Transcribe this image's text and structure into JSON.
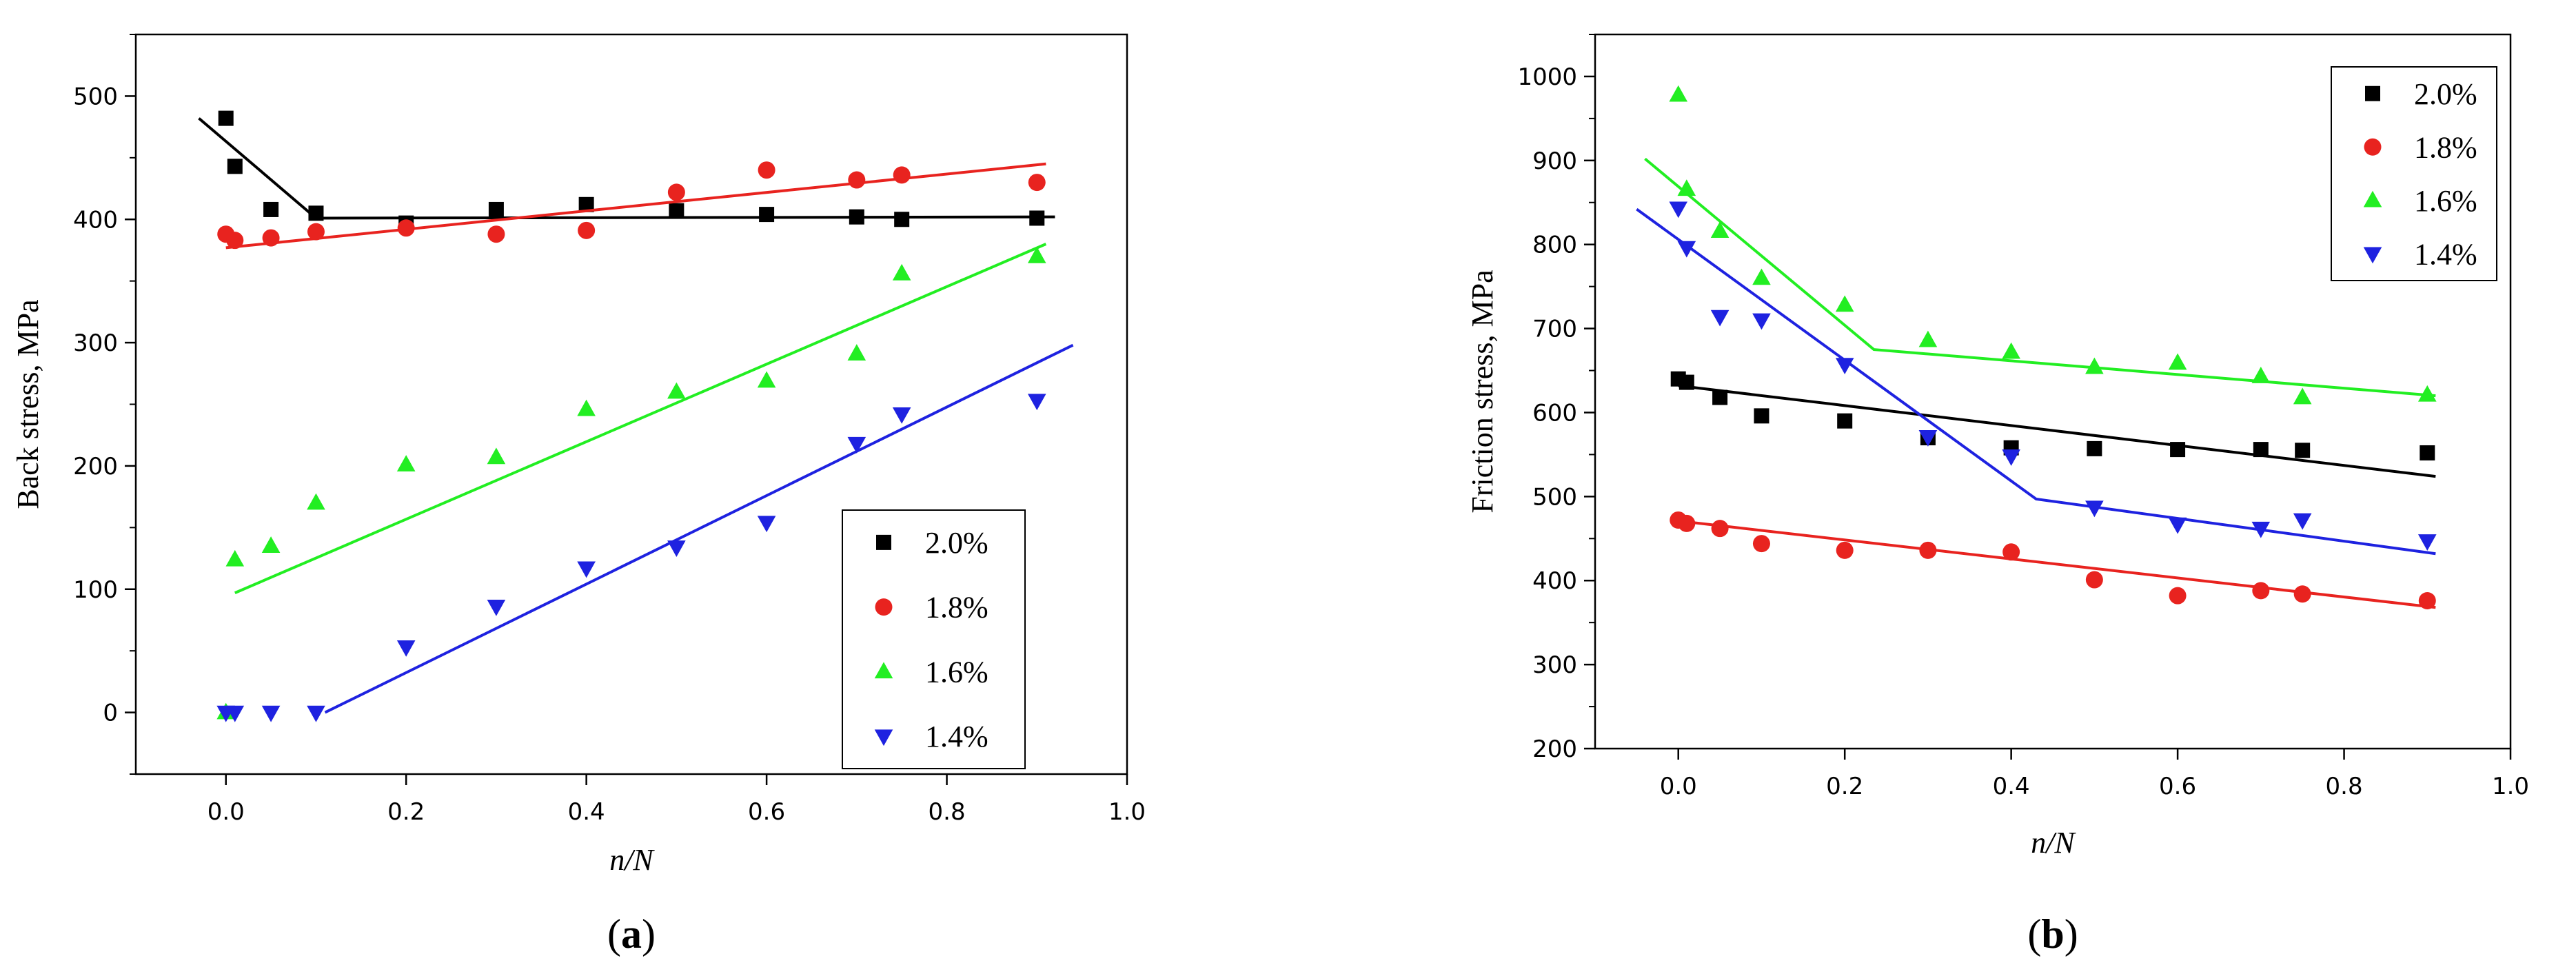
{
  "colors": {
    "black": "#000000",
    "red": "#e8231f",
    "green": "#22ee22",
    "blue": "#1e22e0"
  },
  "chart_data": [
    {
      "type": "scatter",
      "caption_open": "(",
      "caption_letter": "a",
      "caption_close": ")",
      "title": "",
      "xlabel": "n/N",
      "ylabel": "Back stress, MPa",
      "xlim": [
        -0.1,
        1.0
      ],
      "ylim": [
        -50,
        550
      ],
      "xticks": [
        0.0,
        0.2,
        0.4,
        0.6,
        0.8,
        1.0
      ],
      "xtick_labels": [
        "0.0",
        "0.2",
        "0.4",
        "0.6",
        "0.8",
        "1.0"
      ],
      "yticks": [
        0,
        100,
        200,
        300,
        400,
        500
      ],
      "ytick_labels": [
        "0",
        "100",
        "200",
        "300",
        "400",
        "500"
      ],
      "legend_position": "bottom-right",
      "series": [
        {
          "name": "2.0%",
          "color": "#000000",
          "marker": "square",
          "x": [
            0.0,
            0.01,
            0.05,
            0.1,
            0.2,
            0.3,
            0.4,
            0.5,
            0.6,
            0.7,
            0.75,
            0.9
          ],
          "y": [
            482,
            443,
            408,
            405,
            397,
            408,
            412,
            407,
            404,
            402,
            400,
            401
          ],
          "fit": [
            [
              -0.03,
              482
            ],
            [
              0.1,
              401
            ],
            [
              0.92,
              402
            ]
          ]
        },
        {
          "name": "1.8%",
          "color": "#e8231f",
          "marker": "circle",
          "x": [
            0.0,
            0.01,
            0.05,
            0.1,
            0.2,
            0.3,
            0.4,
            0.5,
            0.6,
            0.7,
            0.75,
            0.9
          ],
          "y": [
            388,
            383,
            385,
            390,
            393,
            388,
            391,
            422,
            440,
            432,
            436,
            430
          ],
          "fit": [
            [
              0.0,
              377
            ],
            [
              0.91,
              445
            ]
          ]
        },
        {
          "name": "1.6%",
          "color": "#22ee22",
          "marker": "triangle-up",
          "x": [
            0.0,
            0.01,
            0.05,
            0.1,
            0.2,
            0.3,
            0.4,
            0.5,
            0.6,
            0.7,
            0.75,
            0.9
          ],
          "y": [
            0,
            124,
            135,
            170,
            201,
            207,
            246,
            260,
            269,
            291,
            356,
            370
          ],
          "fit": [
            [
              0.01,
              97
            ],
            [
              0.91,
              380
            ]
          ]
        },
        {
          "name": "1.4%",
          "color": "#1e22e0",
          "marker": "triangle-down",
          "x": [
            0.0,
            0.01,
            0.05,
            0.1,
            0.2,
            0.3,
            0.4,
            0.5,
            0.6,
            0.7,
            0.75,
            0.9
          ],
          "y": [
            0,
            0,
            0,
            0,
            53,
            86,
            117,
            134,
            154,
            218,
            242,
            253
          ],
          "fit": [
            [
              0.11,
              0
            ],
            [
              0.94,
              298
            ]
          ]
        }
      ]
    },
    {
      "type": "scatter",
      "caption_open": "(",
      "caption_letter": "b",
      "caption_close": ")",
      "title": "",
      "xlabel": "n/N",
      "ylabel": "Friction stress, MPa",
      "xlim": [
        -0.1,
        1.0
      ],
      "ylim": [
        200,
        1050
      ],
      "xticks": [
        0.0,
        0.2,
        0.4,
        0.6,
        0.8,
        1.0
      ],
      "xtick_labels": [
        "0.0",
        "0.2",
        "0.4",
        "0.6",
        "0.8",
        "1.0"
      ],
      "yticks": [
        200,
        300,
        400,
        500,
        600,
        700,
        800,
        900,
        1000
      ],
      "ytick_labels": [
        "200",
        "300",
        "400",
        "500",
        "600",
        "700",
        "800",
        "900",
        "1000"
      ],
      "legend_position": "top-right",
      "series": [
        {
          "name": "2.0%",
          "color": "#000000",
          "marker": "square",
          "x": [
            0.0,
            0.01,
            0.05,
            0.1,
            0.2,
            0.3,
            0.4,
            0.5,
            0.6,
            0.7,
            0.75,
            0.9
          ],
          "y": [
            640,
            636,
            618,
            596,
            590,
            570,
            558,
            557,
            556,
            556,
            555,
            552
          ],
          "fit": [
            [
              0.0,
              632
            ],
            [
              0.91,
              524
            ]
          ]
        },
        {
          "name": "1.8%",
          "color": "#e8231f",
          "marker": "circle",
          "x": [
            0.0,
            0.01,
            0.05,
            0.1,
            0.2,
            0.3,
            0.4,
            0.5,
            0.6,
            0.7,
            0.75,
            0.9
          ],
          "y": [
            472,
            468,
            462,
            444,
            436,
            436,
            434,
            401,
            382,
            388,
            384,
            376
          ],
          "fit": [
            [
              0.0,
              471
            ],
            [
              0.91,
              368
            ]
          ]
        },
        {
          "name": "1.6%",
          "color": "#22ee22",
          "marker": "triangle-up",
          "x": [
            0.0,
            0.01,
            0.05,
            0.1,
            0.2,
            0.3,
            0.4,
            0.5,
            0.6,
            0.7,
            0.75,
            0.9
          ],
          "y": [
            978,
            866,
            816,
            760,
            728,
            686,
            672,
            654,
            659,
            643,
            618,
            621
          ],
          "fit": [
            [
              -0.04,
              902
            ],
            [
              0.235,
              675
            ],
            [
              0.91,
              620
            ]
          ]
        },
        {
          "name": "1.4%",
          "color": "#1e22e0",
          "marker": "triangle-down",
          "x": [
            0.0,
            0.01,
            0.05,
            0.1,
            0.2,
            0.3,
            0.4,
            0.5,
            0.6,
            0.7,
            0.75,
            0.9
          ],
          "y": [
            843,
            796,
            714,
            710,
            657,
            571,
            548,
            487,
            467,
            462,
            472,
            447
          ],
          "fit": [
            [
              -0.05,
              842
            ],
            [
              0.43,
              497
            ],
            [
              0.91,
              432
            ]
          ]
        }
      ]
    }
  ]
}
